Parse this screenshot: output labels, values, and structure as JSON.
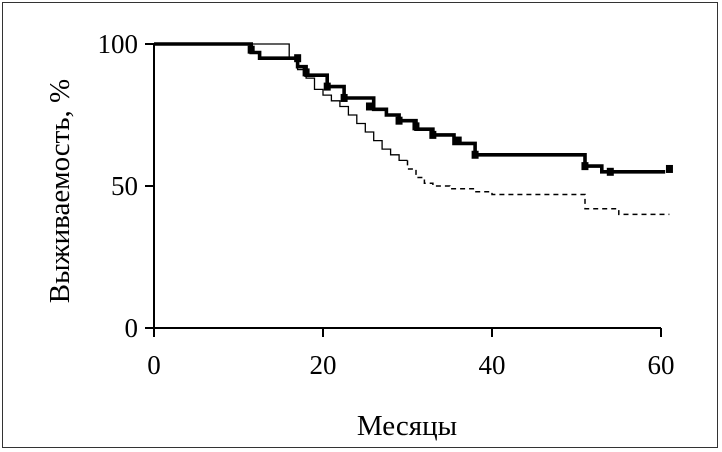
{
  "chart_data": {
    "type": "line",
    "title": "",
    "xlabel": "Месяцы",
    "ylabel": "Выживаемость, %",
    "xlim": [
      0,
      60
    ],
    "ylim": [
      0,
      100
    ],
    "xticks": [
      "0",
      "20",
      "40",
      "60"
    ],
    "yticks": [
      "0",
      "50",
      "100"
    ],
    "grid": false,
    "legend": "none",
    "series": [
      {
        "style": "solid-thick",
        "color": "#000000",
        "x": [
          0,
          11.5,
          12.5,
          17,
          18,
          20.5,
          22.5,
          26,
          27.5,
          29,
          31,
          33,
          35.5,
          38,
          51,
          53,
          60.5
        ],
        "y": [
          100,
          97,
          95,
          92,
          89,
          85,
          81,
          77,
          75,
          73,
          70,
          68,
          65,
          61,
          57,
          55,
          55
        ],
        "censor_x": [
          11.5,
          17,
          18,
          20.5,
          22.5,
          25.5,
          29,
          31,
          33,
          36,
          38,
          51,
          54,
          61
        ],
        "censor_y": [
          98,
          95,
          90,
          85,
          81,
          78,
          73,
          71,
          68,
          66,
          61,
          57,
          55,
          56
        ]
      },
      {
        "style": "thin-then-dashed",
        "color": "#000000",
        "x": [
          0,
          16,
          17,
          18,
          19,
          20,
          21,
          22,
          23,
          24,
          25,
          26,
          27,
          28,
          29,
          30,
          31,
          32,
          33,
          35,
          38,
          40,
          42,
          45,
          51,
          55,
          61
        ],
        "y": [
          100,
          95,
          91,
          88,
          84,
          82,
          80,
          78,
          75,
          72,
          69,
          66,
          63,
          61,
          59,
          56,
          53,
          51,
          50,
          49,
          48,
          47,
          47,
          47,
          42,
          40,
          40
        ],
        "dash_from_x": 30
      }
    ]
  }
}
